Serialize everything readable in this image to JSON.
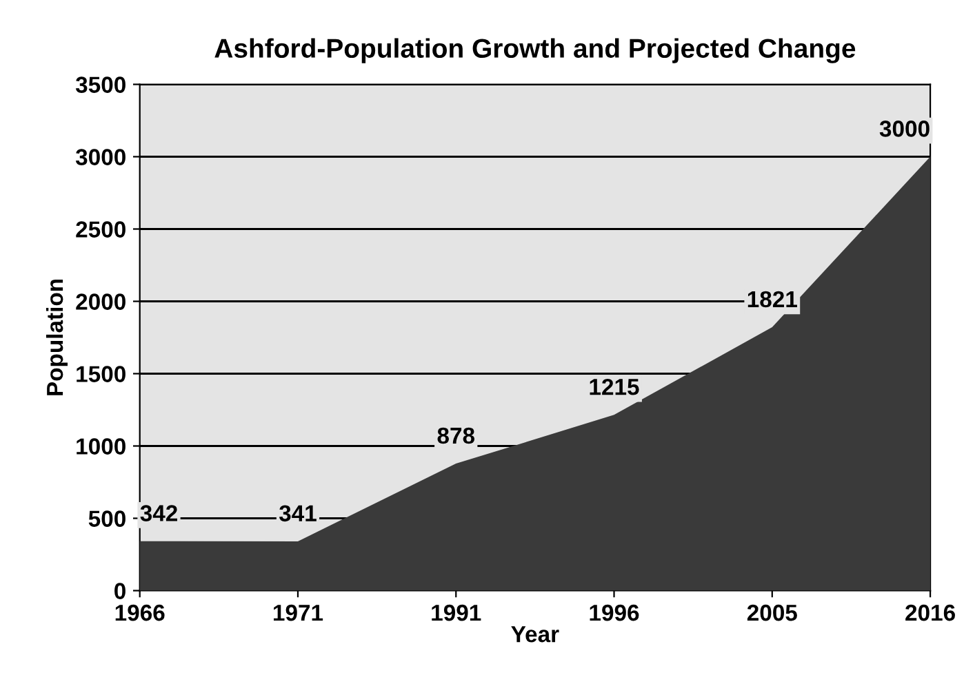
{
  "chart_data": {
    "type": "area",
    "title": "Ashford-Population Growth and Projected Change",
    "xlabel": "Year",
    "ylabel": "Population",
    "categories": [
      "1966",
      "1971",
      "1991",
      "1996",
      "2005",
      "2016"
    ],
    "values": [
      342,
      341,
      878,
      1215,
      1821,
      3000
    ],
    "color": "#3a3a3a",
    "ylim": [
      0,
      3500
    ],
    "yticks": [
      0,
      500,
      1000,
      1500,
      2000,
      2500,
      3000,
      3500
    ],
    "grid": "y",
    "data_labels": true
  }
}
